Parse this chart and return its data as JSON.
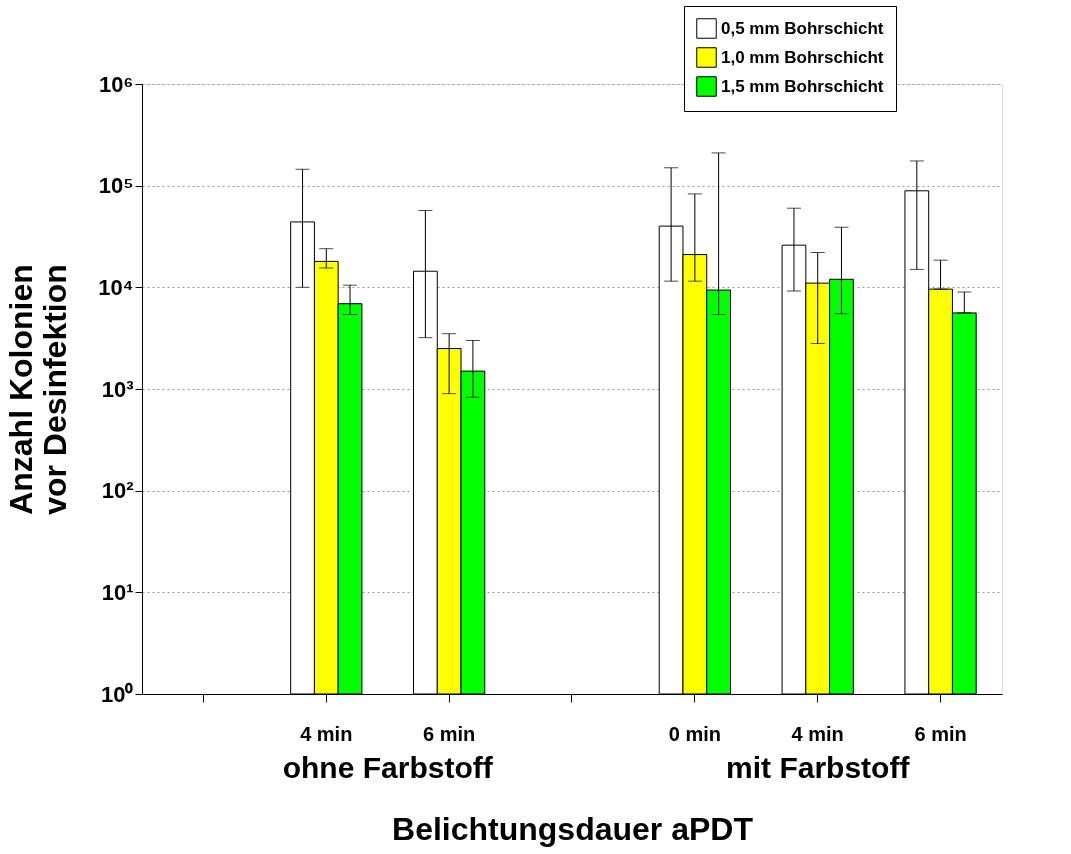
{
  "chart_data": {
    "type": "bar",
    "xlabel": "Belichtungsdauer aPDT",
    "ylabel": "Anzahl Kolonien\nvor Desinfektion",
    "categories": [
      null,
      "4 min",
      "6 min",
      null,
      "0 min",
      "4 min",
      "6 min"
    ],
    "log": "y",
    "ylim": [
      1,
      1000000
    ],
    "yticks": [
      {
        "value": 1,
        "label": "10⁰"
      },
      {
        "value": 10,
        "label": "10¹"
      },
      {
        "value": 100,
        "label": "10²"
      },
      {
        "value": 1000,
        "label": "10³"
      },
      {
        "value": 10000,
        "label": "10⁴"
      },
      {
        "value": 100000,
        "label": "10⁵"
      },
      {
        "value": 1000000,
        "label": "10⁶"
      }
    ],
    "grid": "y",
    "legend": "top right",
    "annotations": [
      "ohne Farbstoff",
      "mit  Farbstoff"
    ],
    "series": [
      {
        "name": "0,5 mm Bohrschicht",
        "color": "#ffffff",
        "values": [
          null,
          44000,
          14400,
          null,
          40000,
          26000,
          89000
        ],
        "errors": [
          null,
          [
            10000,
            145000
          ],
          [
            3200,
            57000
          ],
          null,
          [
            11500,
            150000
          ],
          [
            9200,
            60000
          ],
          [
            15000,
            175000
          ]
        ]
      },
      {
        "name": "1,0 mm Bohrschicht",
        "color": "#ffff00",
        "values": [
          null,
          18000,
          2500,
          null,
          21000,
          11000,
          9600
        ],
        "errors": [
          null,
          [
            15500,
            24000
          ],
          [
            900,
            3500
          ],
          null,
          [
            11500,
            83000
          ],
          [
            2800,
            22000
          ],
          [
            9600,
            18500
          ]
        ]
      },
      {
        "name": "1,5 mm Bohrschicht",
        "color": "#00ff00",
        "values": [
          null,
          6900,
          1500,
          null,
          9400,
          12000,
          5600
        ],
        "errors": [
          null,
          [
            5400,
            10500
          ],
          [
            830,
            3000
          ],
          null,
          [
            5400,
            210000
          ],
          [
            5500,
            39000
          ],
          [
            5600,
            9000
          ]
        ]
      }
    ]
  }
}
